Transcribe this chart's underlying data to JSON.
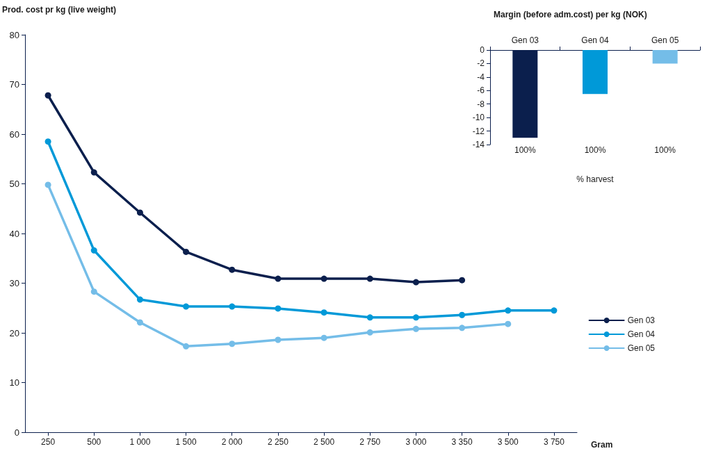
{
  "chart_data": [
    {
      "type": "line",
      "ylabel": "Prod. cost pr kg (live weight)",
      "xlabel": "Gram",
      "categories": [
        "250",
        "500",
        "1 000",
        "1 500",
        "2 000",
        "2 250",
        "2 500",
        "2 750",
        "3 000",
        "3 350",
        "3 500",
        "3 750"
      ],
      "ylim": [
        0,
        80
      ],
      "yticks": [
        0,
        10,
        20,
        30,
        40,
        50,
        60,
        70,
        80
      ],
      "marker": "circle",
      "line_style": "solid",
      "grid": false,
      "legend": "right",
      "series": [
        {
          "name": "Gen 03",
          "color": "#0b1f4d",
          "values": [
            67.8,
            52.3,
            44.2,
            36.3,
            32.7,
            30.9,
            30.9,
            30.9,
            30.2,
            30.6,
            null,
            null
          ]
        },
        {
          "name": "Gen 04",
          "color": "#0099d8",
          "values": [
            58.5,
            36.6,
            26.7,
            25.3,
            25.3,
            24.9,
            24.1,
            23.1,
            23.1,
            23.6,
            24.5,
            24.5
          ]
        },
        {
          "name": "Gen 05",
          "color": "#74bde8",
          "values": [
            49.8,
            28.3,
            22.1,
            17.3,
            17.8,
            18.6,
            19.0,
            20.1,
            20.8,
            21.0,
            21.8,
            null
          ]
        }
      ]
    },
    {
      "type": "bar",
      "title": "Margin (before adm.cost) per kg (NOK)",
      "categories": [
        "Gen 03",
        "Gen 04",
        "Gen 05"
      ],
      "values": [
        -13,
        -6.5,
        -2
      ],
      "colors": [
        "#0b1f4d",
        "#0099d8",
        "#74bde8"
      ],
      "ylim": [
        -14,
        0
      ],
      "yticks": [
        0,
        -2,
        -4,
        -6,
        -8,
        -10,
        -12,
        -14
      ],
      "grid": false,
      "legend": false,
      "annotations": [
        "100%",
        "100%",
        "100%",
        "% harvest"
      ]
    }
  ]
}
